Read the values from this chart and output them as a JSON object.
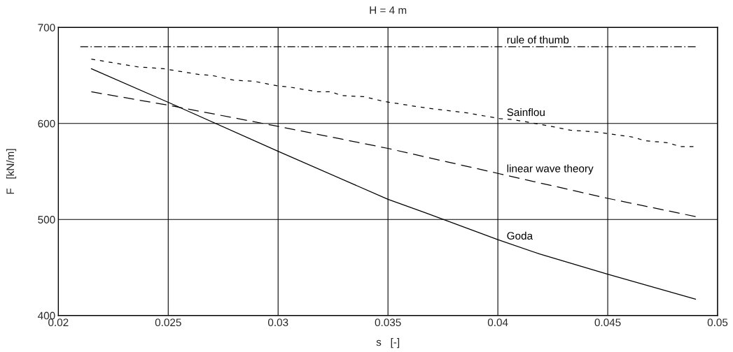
{
  "chart_data": {
    "type": "line",
    "title": "H = 4 m",
    "xlabel": "s   [-]",
    "ylabel": "F   [kN/m]",
    "xlim": [
      0.02,
      0.05
    ],
    "xticks": [
      0.02,
      0.025,
      0.03,
      0.035,
      0.04,
      0.045,
      0.05
    ],
    "ylim": [
      400,
      700
    ],
    "yticks": [
      400,
      500,
      600,
      700
    ],
    "grid": true,
    "series": [
      {
        "name": "rule of thumb",
        "color": "#000000",
        "line_style": "dashdot",
        "x": [
          0.021,
          0.049
        ],
        "values": [
          680,
          680
        ]
      },
      {
        "name": "Sainflou",
        "color": "#000000",
        "line_style": "dotted",
        "x": [
          0.0215,
          0.0236,
          0.0248,
          0.0264,
          0.027,
          0.028,
          0.0289,
          0.03,
          0.0305,
          0.0318,
          0.0324,
          0.0329,
          0.0339,
          0.0348,
          0.0362,
          0.0368,
          0.0386,
          0.0401,
          0.0407,
          0.0422,
          0.0433,
          0.0445,
          0.0461,
          0.0467,
          0.0477,
          0.0483,
          0.0489
        ],
        "values": [
          667,
          659,
          657,
          651,
          650,
          645,
          644,
          639,
          638,
          633,
          633,
          629,
          628,
          623,
          618,
          616,
          611,
          605,
          604,
          598,
          593,
          591,
          586,
          582,
          580,
          576,
          576
        ]
      },
      {
        "name": "linear wave theory",
        "color": "#000000",
        "line_style": "dashed",
        "x": [
          0.0215,
          0.025,
          0.03,
          0.035,
          0.04,
          0.045,
          0.049
        ],
        "values": [
          633,
          619,
          597,
          574,
          548,
          522,
          503
        ]
      },
      {
        "name": "Goda",
        "color": "#000000",
        "line_style": "solid",
        "x": [
          0.0215,
          0.025,
          0.03,
          0.035,
          0.0367,
          0.04,
          0.0419,
          0.045,
          0.049
        ],
        "values": [
          657,
          622,
          571,
          521,
          507,
          479,
          464,
          443,
          417
        ]
      }
    ]
  }
}
